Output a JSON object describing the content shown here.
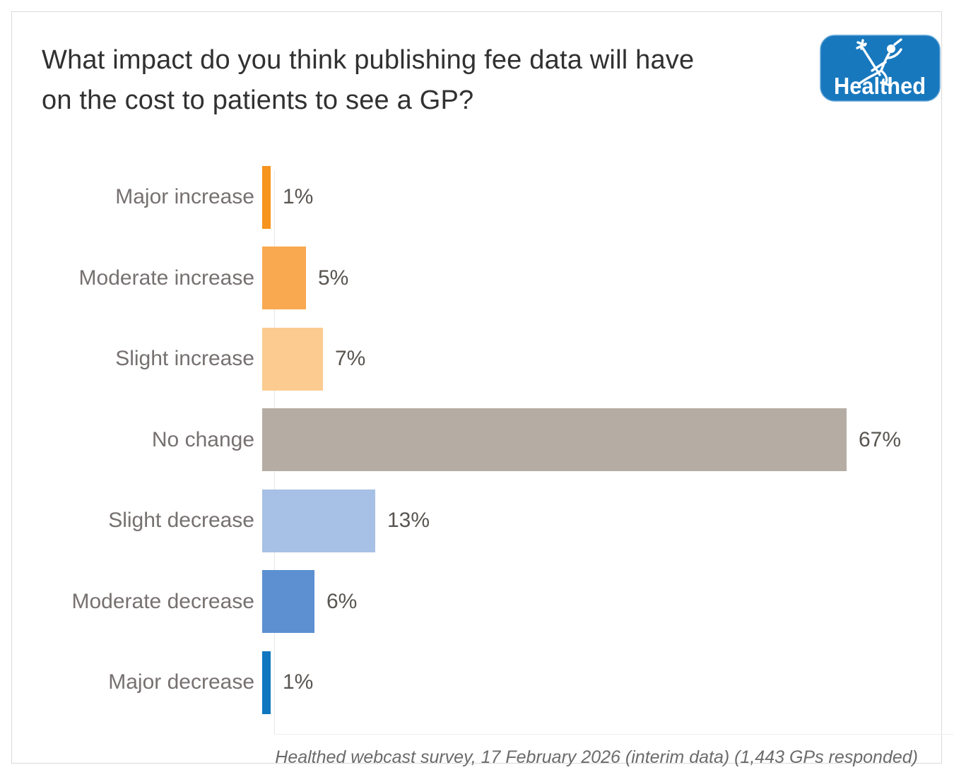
{
  "page": {
    "title_line1": "What impact do you think publishing fee data will have",
    "title_line2": "on the cost to patients to see a GP?",
    "footer": "Healthed webcast survey, 17 February 2026 (interim data) (1,443 GPs responded)"
  },
  "logo": {
    "text": "Healthed",
    "bg_color": "#1878BE",
    "figure_color": "#ffffff",
    "icon": "mercury-runner-icon"
  },
  "chart_data": {
    "type": "bar",
    "orientation": "horizontal",
    "title": "What impact do you think publishing fee data will have on the cost to patients to see a GP?",
    "categories": [
      "Major increase",
      "Moderate increase",
      "Slight increase",
      "No change",
      "Slight decrease",
      "Moderate decrease",
      "Major decrease"
    ],
    "values": [
      1,
      5,
      7,
      67,
      13,
      6,
      1
    ],
    "value_labels": [
      "1%",
      "5%",
      "7%",
      "67%",
      "13%",
      "6%",
      "1%"
    ],
    "bar_colors": [
      "#F7941D",
      "#F9A950",
      "#FBCB90",
      "#B5ACA4",
      "#A7C0E5",
      "#5C90D1",
      "#0F76BF"
    ],
    "xlabel": "",
    "ylabel": "",
    "xlim": [
      0,
      78
    ],
    "grid": false,
    "legend": null,
    "source_note": "Healthed webcast survey, 17 February 2026 (interim data) (1,443 GPs responded)"
  }
}
